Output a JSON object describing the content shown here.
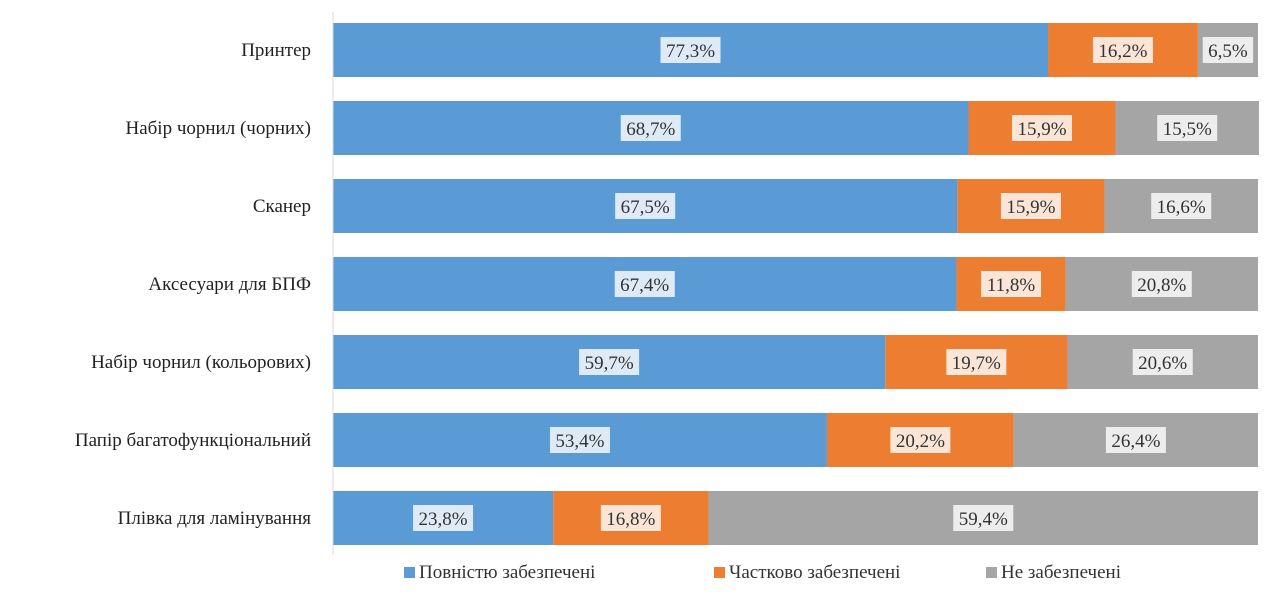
{
  "chart_data": {
    "type": "bar",
    "orientation": "horizontal",
    "stacked": true,
    "percent_stacked": true,
    "categories": [
      "Принтер",
      "Набір чорнил (чорних)",
      "Сканер",
      "Аксесуари для БПФ",
      "Набір чорнил (кольорових)",
      "Папір багатофункціональний",
      "Плівка для ламінування"
    ],
    "series": [
      {
        "name": "Повністю забезпечені",
        "color": "#5B9BD5",
        "label_bg": "#DEEBF7",
        "values": [
          77.3,
          68.7,
          67.5,
          67.4,
          59.7,
          53.4,
          23.8
        ],
        "labels": [
          "77,3%",
          "68,7%",
          "67,5%",
          "67,4%",
          "59,7%",
          "53,4%",
          "23,8%"
        ]
      },
      {
        "name": "Частково забезпечені",
        "color": "#ED7D31",
        "label_bg": "#FBE5D6",
        "values": [
          16.2,
          15.9,
          15.9,
          11.8,
          19.7,
          20.2,
          16.8
        ],
        "labels": [
          "16,2%",
          "15,9%",
          "15,9%",
          "11,8%",
          "19,7%",
          "20,2%",
          "16,8%"
        ]
      },
      {
        "name": "Не забезпечені",
        "color": "#A5A5A5",
        "label_bg": "#EDEDED",
        "values": [
          6.5,
          15.5,
          16.6,
          20.8,
          20.6,
          26.4,
          59.4
        ],
        "labels": [
          "6,5%",
          "15,5%",
          "16,6%",
          "20,8%",
          "20,6%",
          "26,4%",
          "59,4%"
        ]
      }
    ],
    "xlim": [
      0,
      100
    ],
    "grid": false,
    "legend_position": "bottom"
  }
}
